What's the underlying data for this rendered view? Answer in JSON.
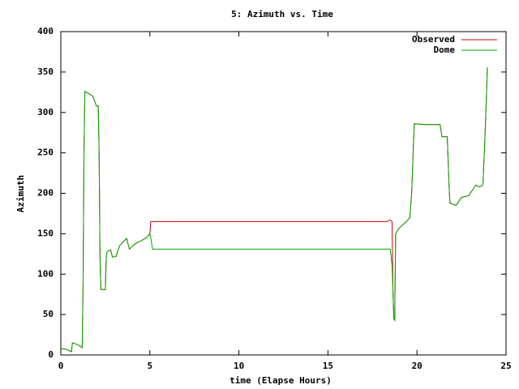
{
  "chart_data": {
    "type": "line",
    "title": "5: Azimuth vs. Time",
    "x_label": "time (Elapse Hours)",
    "y_label": "Azimuth",
    "x": [
      0,
      0.3,
      0.5,
      0.6,
      0.65,
      0.8,
      1.0,
      1.2,
      1.25,
      1.3,
      1.35,
      1.6,
      1.8,
      2.0,
      2.1,
      2.15,
      2.2,
      2.25,
      2.5,
      2.55,
      2.6,
      2.8,
      2.9,
      3.1,
      3.3,
      3.5,
      3.7,
      3.8,
      3.85,
      4.2,
      4.5,
      4.8,
      5.0,
      5.05,
      5.15,
      18.3,
      18.5,
      18.6,
      18.65,
      18.7,
      18.75,
      18.8,
      19.0,
      19.4,
      19.6,
      19.7,
      19.8,
      19.85,
      20.5,
      21.3,
      21.4,
      21.7,
      21.8,
      21.85,
      22.2,
      22.5,
      22.9,
      23.3,
      23.5,
      23.7,
      23.8,
      23.9,
      23.95
    ],
    "series": [
      {
        "name": "Observed",
        "color": "#cc0000",
        "values": [
          8,
          7,
          5,
          4,
          15,
          14,
          12,
          9,
          88,
          250,
          326,
          323,
          320,
          308,
          308,
          250,
          120,
          81,
          81,
          120,
          128,
          130,
          121,
          122,
          135,
          140,
          144,
          135,
          131,
          138,
          141,
          145,
          150,
          165,
          165,
          165,
          167,
          165,
          80,
          45,
          43,
          150,
          157,
          165,
          170,
          200,
          260,
          286,
          285,
          285,
          270,
          270,
          210,
          188,
          185,
          195,
          197,
          210,
          208,
          210,
          260,
          320,
          356
        ]
      },
      {
        "name": "Dome",
        "color": "#00aa00",
        "values": [
          8,
          7,
          5,
          4,
          15,
          14,
          12,
          9,
          88,
          250,
          326,
          323,
          320,
          308,
          308,
          250,
          120,
          81,
          81,
          120,
          128,
          130,
          121,
          122,
          135,
          140,
          144,
          135,
          131,
          138,
          141,
          145,
          150,
          145,
          131,
          131,
          131,
          110,
          80,
          45,
          43,
          150,
          157,
          165,
          170,
          200,
          260,
          286,
          285,
          285,
          270,
          270,
          210,
          188,
          185,
          195,
          197,
          210,
          208,
          210,
          260,
          320,
          356
        ]
      }
    ],
    "xlim": [
      0,
      25
    ],
    "xticks": [
      0,
      5,
      10,
      15,
      20,
      25
    ],
    "ylim": [
      0,
      400
    ],
    "yticks": [
      0,
      50,
      100,
      150,
      200,
      250,
      300,
      350,
      400
    ],
    "legend": "top-right"
  }
}
